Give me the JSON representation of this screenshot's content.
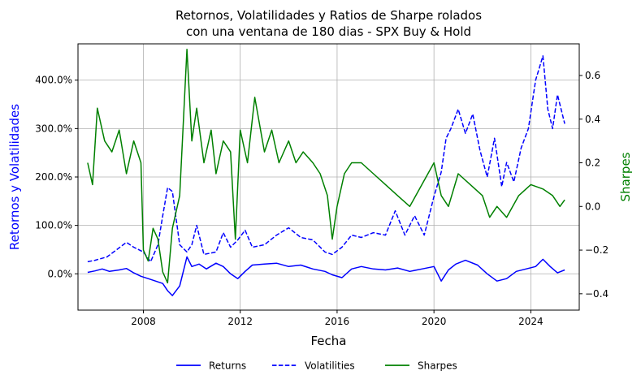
{
  "chart_data": {
    "type": "line",
    "title": [
      "Retornos, Volatilidades y Ratios de Sharpe rolados",
      "con una ventana de 180 dias - SPX Buy & Hold"
    ],
    "xlabel": "Fecha",
    "ylabel_left": "Retornos y Volatilidades",
    "ylabel_right": "Sharpes",
    "xlim": [
      2005.3,
      2026.0
    ],
    "ylim_left": [
      -75,
      475
    ],
    "ylim_right": [
      -0.475,
      0.745
    ],
    "x_ticks": [
      2008,
      2012,
      2016,
      2020,
      2024
    ],
    "x_tick_labels": [
      "2008",
      "2012",
      "2016",
      "2020",
      "2024"
    ],
    "y_left_ticks": [
      0,
      100,
      200,
      300,
      400
    ],
    "y_left_tick_labels": [
      "0.0%",
      "100.0%",
      "200.0%",
      "300.0%",
      "400.0%"
    ],
    "y_right_ticks": [
      -0.4,
      -0.2,
      0.0,
      0.2,
      0.4,
      0.6
    ],
    "y_right_tick_labels": [
      "−0.4",
      "−0.2",
      "0.0",
      "0.2",
      "0.4",
      "0.6"
    ],
    "grid": true,
    "legend_position": "bottom-center",
    "colors": {
      "returns": "#0000ff",
      "volatilities": "#0000ff",
      "sharpes": "#008000",
      "left_axis_label": "#0000ff",
      "right_axis_label": "#008000"
    },
    "series": [
      {
        "name": "Returns",
        "axis": "left",
        "style": "solid",
        "x": [
          2005.7,
          2006.0,
          2006.3,
          2006.6,
          2007.0,
          2007.3,
          2007.6,
          2007.9,
          2008.2,
          2008.5,
          2008.8,
          2009.0,
          2009.2,
          2009.5,
          2009.8,
          2010.0,
          2010.3,
          2010.6,
          2011.0,
          2011.3,
          2011.6,
          2011.9,
          2012.2,
          2012.5,
          2013.0,
          2013.5,
          2014.0,
          2014.5,
          2015.0,
          2015.5,
          2015.8,
          2016.2,
          2016.6,
          2017.0,
          2017.5,
          2018.0,
          2018.5,
          2019.0,
          2019.5,
          2020.0,
          2020.3,
          2020.6,
          2020.9,
          2021.3,
          2021.8,
          2022.2,
          2022.6,
          2023.0,
          2023.4,
          2023.8,
          2024.2,
          2024.5,
          2024.8,
          2025.1,
          2025.4
        ],
        "y": [
          3,
          6,
          10,
          5,
          8,
          11,
          2,
          -5,
          -10,
          -15,
          -20,
          -35,
          -45,
          -25,
          35,
          15,
          20,
          10,
          22,
          15,
          0,
          -10,
          5,
          18,
          20,
          22,
          15,
          18,
          10,
          5,
          -2,
          -8,
          10,
          15,
          10,
          8,
          12,
          5,
          10,
          15,
          -15,
          8,
          20,
          28,
          18,
          0,
          -15,
          -10,
          5,
          10,
          15,
          30,
          15,
          2,
          8
        ]
      },
      {
        "name": "Volatilities",
        "axis": "left",
        "style": "dashed",
        "x": [
          2005.7,
          2006.0,
          2006.5,
          2006.9,
          2007.3,
          2007.6,
          2008.0,
          2008.3,
          2008.6,
          2008.8,
          2009.0,
          2009.2,
          2009.5,
          2009.8,
          2010.0,
          2010.2,
          2010.5,
          2011.0,
          2011.3,
          2011.6,
          2011.9,
          2012.2,
          2012.5,
          2013.0,
          2013.5,
          2014.0,
          2014.5,
          2015.0,
          2015.5,
          2015.8,
          2016.2,
          2016.6,
          2017.0,
          2017.5,
          2018.0,
          2018.4,
          2018.8,
          2019.2,
          2019.6,
          2020.0,
          2020.3,
          2020.5,
          2020.7,
          2021.0,
          2021.3,
          2021.6,
          2021.9,
          2022.2,
          2022.5,
          2022.8,
          2023.0,
          2023.3,
          2023.6,
          2023.9,
          2024.2,
          2024.5,
          2024.7,
          2024.9,
          2025.1,
          2025.4
        ],
        "y": [
          25,
          28,
          35,
          50,
          65,
          55,
          45,
          25,
          60,
          120,
          178,
          170,
          60,
          45,
          60,
          100,
          40,
          45,
          85,
          55,
          70,
          90,
          55,
          60,
          80,
          95,
          75,
          70,
          45,
          40,
          55,
          80,
          75,
          85,
          80,
          130,
          80,
          120,
          80,
          160,
          210,
          280,
          300,
          340,
          290,
          330,
          255,
          200,
          280,
          180,
          230,
          190,
          260,
          300,
          400,
          450,
          340,
          300,
          370,
          310
        ]
      },
      {
        "name": "Sharpes",
        "axis": "right",
        "style": "solid",
        "x": [
          2005.7,
          2005.9,
          2006.1,
          2006.4,
          2006.7,
          2007.0,
          2007.3,
          2007.6,
          2007.9,
          2008.0,
          2008.2,
          2008.4,
          2008.6,
          2008.8,
          2009.0,
          2009.2,
          2009.5,
          2009.8,
          2010.0,
          2010.2,
          2010.5,
          2010.8,
          2011.0,
          2011.3,
          2011.6,
          2011.8,
          2012.0,
          2012.3,
          2012.6,
          2013.0,
          2013.3,
          2013.6,
          2014.0,
          2014.3,
          2014.6,
          2015.0,
          2015.3,
          2015.6,
          2015.8,
          2016.0,
          2016.3,
          2016.6,
          2017.0,
          2017.5,
          2018.0,
          2018.5,
          2019.0,
          2019.5,
          2020.0,
          2020.3,
          2020.6,
          2021.0,
          2021.5,
          2022.0,
          2022.3,
          2022.6,
          2023.0,
          2023.5,
          2024.0,
          2024.5,
          2024.9,
          2025.2,
          2025.4
        ],
        "y": [
          0.2,
          0.1,
          0.45,
          0.3,
          0.25,
          0.35,
          0.15,
          0.3,
          0.2,
          -0.2,
          -0.25,
          -0.1,
          -0.15,
          -0.3,
          -0.35,
          -0.1,
          0.05,
          0.72,
          0.3,
          0.45,
          0.2,
          0.35,
          0.15,
          0.3,
          0.25,
          -0.15,
          0.35,
          0.2,
          0.5,
          0.25,
          0.35,
          0.2,
          0.3,
          0.2,
          0.25,
          0.2,
          0.15,
          0.05,
          -0.15,
          0.0,
          0.15,
          0.2,
          0.2,
          0.15,
          0.1,
          0.05,
          0.0,
          0.1,
          0.2,
          0.05,
          0.0,
          0.15,
          0.1,
          0.05,
          -0.05,
          0.0,
          -0.05,
          0.05,
          0.1,
          0.08,
          0.05,
          0.0,
          0.03
        ]
      }
    ]
  }
}
